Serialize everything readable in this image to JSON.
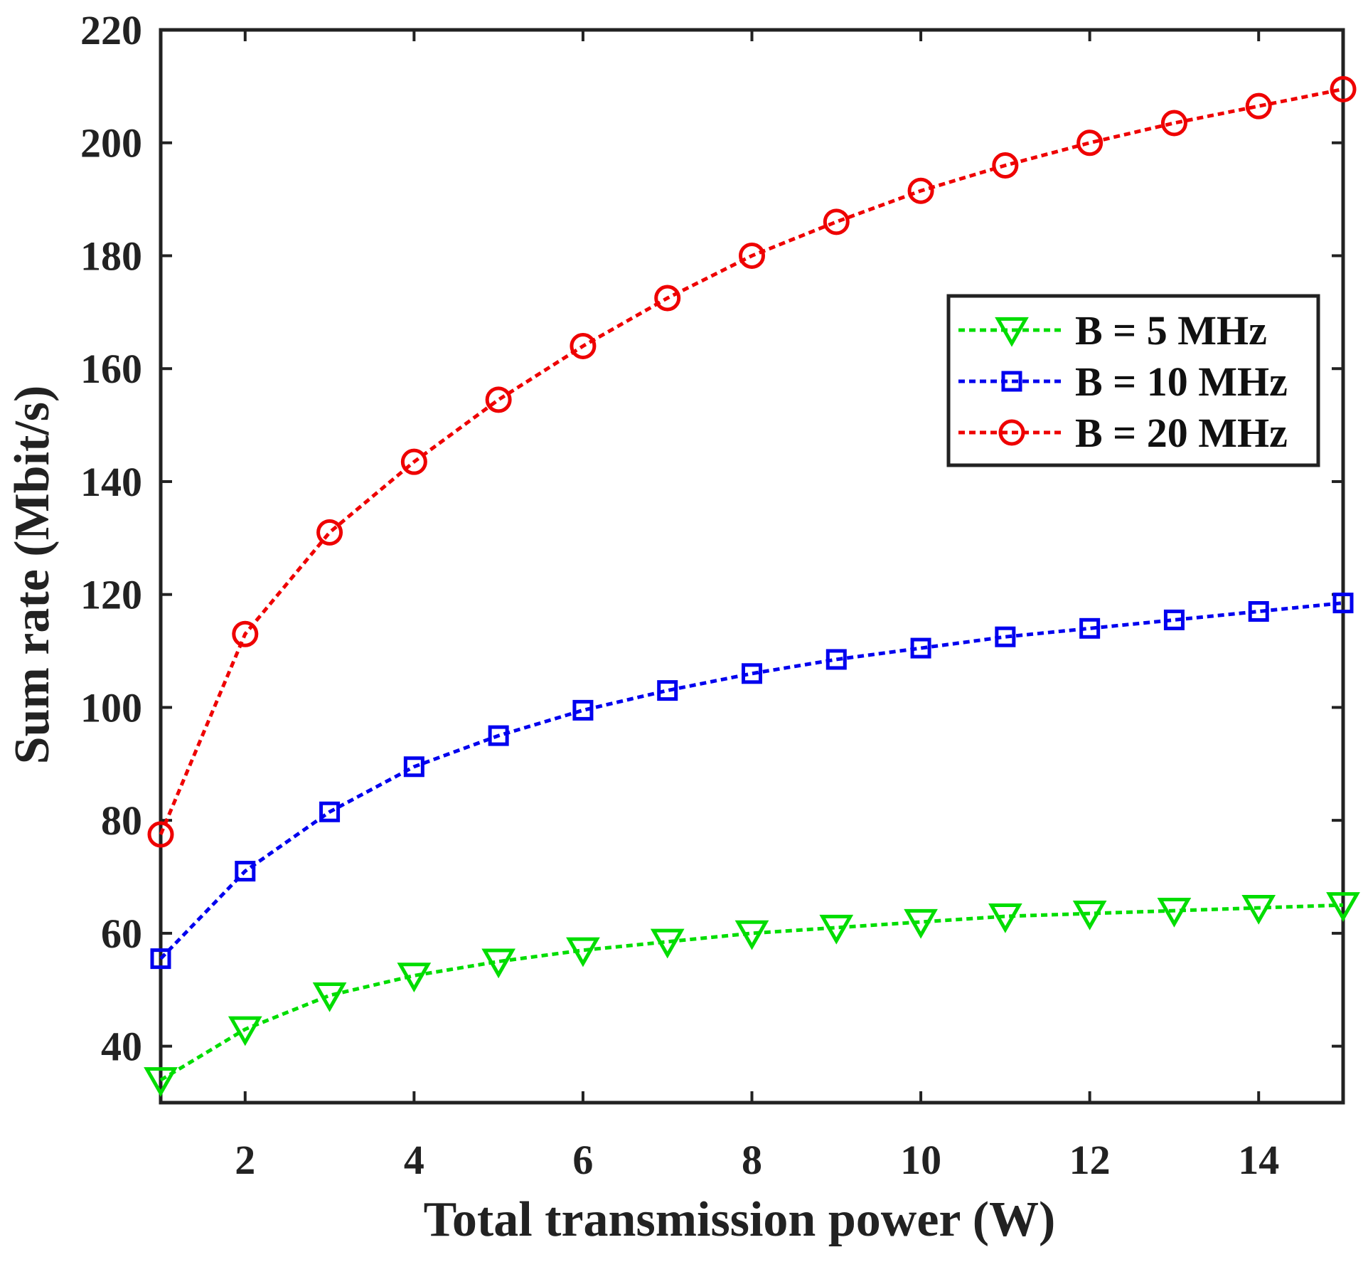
{
  "chart_data": {
    "type": "line",
    "title": "",
    "xlabel": "Total transmission power (W)",
    "ylabel": "Sum rate (Mbit/s)",
    "xlim": [
      1,
      15
    ],
    "ylim": [
      30,
      220
    ],
    "xticks": [
      2,
      4,
      6,
      8,
      10,
      12,
      14
    ],
    "yticks": [
      40,
      60,
      80,
      100,
      120,
      140,
      160,
      180,
      200,
      220
    ],
    "grid": false,
    "legend_position": "upper-right",
    "x": [
      1,
      2,
      3,
      4,
      5,
      6,
      7,
      8,
      9,
      10,
      11,
      12,
      13,
      14,
      15
    ],
    "series": [
      {
        "name": "B = 5 MHz",
        "color": "#00dd00",
        "marker": "triangle-down",
        "values": [
          34,
          43,
          49,
          52.5,
          55,
          57,
          58.5,
          60,
          61,
          62,
          63,
          63.5,
          64,
          64.5,
          65
        ]
      },
      {
        "name": "B = 10 MHz",
        "color": "#0000ee",
        "marker": "square",
        "values": [
          55.5,
          71,
          81.5,
          89.5,
          95,
          99.5,
          103,
          106,
          108.5,
          110.5,
          112.5,
          114,
          115.5,
          117,
          118.5
        ]
      },
      {
        "name": "B = 20 MHz",
        "color": "#ee0000",
        "marker": "circle",
        "values": [
          77.5,
          113,
          131,
          143.5,
          154.5,
          164,
          172.5,
          180,
          186,
          191.5,
          196,
          200,
          203.5,
          206.5,
          209.5
        ]
      }
    ]
  }
}
